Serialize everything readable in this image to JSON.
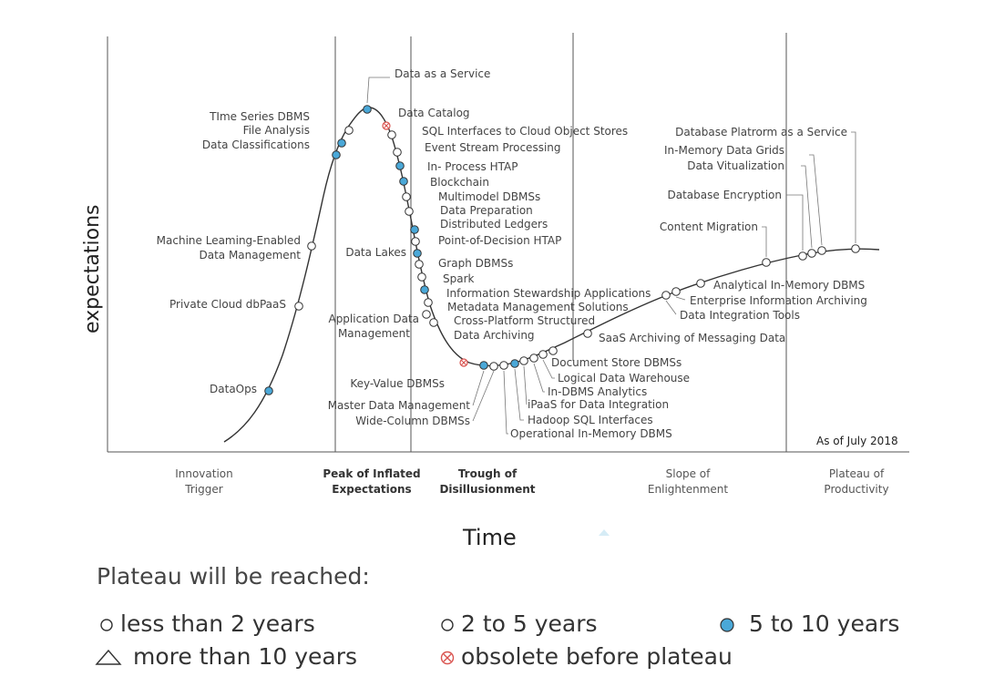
{
  "axes": {
    "ylabel": "expectations",
    "xlabel": "Time",
    "as_of": "As of July 2018"
  },
  "phases": [
    {
      "line1": "Innovation",
      "line2": "Trigger",
      "bold": false
    },
    {
      "line1": "Peak of Inflated",
      "line2": "Expectations",
      "bold": true
    },
    {
      "line1": "Trough of",
      "line2": "Disillusionment",
      "bold": true
    },
    {
      "line1": "Slope of",
      "line2": "Enlightenment",
      "bold": false
    },
    {
      "line1": "Plateau of",
      "line2": "Productivity",
      "bold": false
    }
  ],
  "technologies": [
    {
      "name": "DataOps",
      "type": "5-10"
    },
    {
      "name": "Private Cloud dbPaaS",
      "type": "2-5"
    },
    {
      "name": "Machine Leaming-Enabled",
      "name2": "Data Management",
      "type": "2-5"
    },
    {
      "name": "Data Classifications",
      "type": "5-10"
    },
    {
      "name": "File Analysis",
      "type": "5-10"
    },
    {
      "name": "TIme Series DBMS",
      "type": "2-5"
    },
    {
      "name": "Data as a Service",
      "type": "5-10"
    },
    {
      "name": "Data Catalog",
      "type": "obsolete"
    },
    {
      "name": "SQL Interfaces to Cloud Object Stores",
      "type": "2-5"
    },
    {
      "name": "Event Stream Processing",
      "type": "2-5"
    },
    {
      "name": "In- Process HTAP",
      "type": "5-10"
    },
    {
      "name": "Blockchain",
      "type": "5-10"
    },
    {
      "name": "Multimodel DBMSs",
      "type": "2-5"
    },
    {
      "name": "Data Preparation",
      "type": "2-5"
    },
    {
      "name": "Distributed Ledgers",
      "type": "5-10"
    },
    {
      "name": "Point-of-Decision HTAP",
      "type": "2-5"
    },
    {
      "name": "Data Lakes",
      "type": "5-10"
    },
    {
      "name": "Graph DBMSs",
      "type": "2-5"
    },
    {
      "name": "Spark",
      "type": "2-5"
    },
    {
      "name": "Information Stewardship Applications",
      "type": "5-10"
    },
    {
      "name": "Metadata Management Solutions",
      "type": "2-5"
    },
    {
      "name": "Application Data",
      "name2": "Management",
      "type": "2-5"
    },
    {
      "name": "Cross-Platform Structured",
      "name2": "Data Archiving",
      "type": "2-5"
    },
    {
      "name": "Key-Value DBMSs",
      "type": "obsolete"
    },
    {
      "name": "Master Data Management",
      "type": "5-10"
    },
    {
      "name": "Wide-Column DBMSs",
      "type": "2-5"
    },
    {
      "name": "Operational In-Memory DBMS",
      "type": "2-5"
    },
    {
      "name": "Hadoop SQL Interfaces",
      "type": "5-10"
    },
    {
      "name": "iPaaS for Data Integration",
      "type": "2-5"
    },
    {
      "name": "In-DBMS Analytics",
      "type": "2-5"
    },
    {
      "name": "Logical Data Warehouse",
      "type": "2-5"
    },
    {
      "name": "Document Store DBMSs",
      "type": "2-5"
    },
    {
      "name": "SaaS Archiving of Messaging Data",
      "type": "2-5"
    },
    {
      "name": "Data Integration Tools",
      "type": "2-5"
    },
    {
      "name": "Enterprise Information Archiving",
      "type": "2-5"
    },
    {
      "name": "Analytical In-Memory DBMS",
      "type": "2-5"
    },
    {
      "name": "Content Migration",
      "type": "2-5"
    },
    {
      "name": "Database Encryption",
      "type": "2-5"
    },
    {
      "name": "Data Vitualization",
      "type": "2-5"
    },
    {
      "name": "In-Memory Data Grids",
      "type": "2-5"
    },
    {
      "name": "Database Platrorm as a Service",
      "type": "2-5"
    }
  ],
  "legend": {
    "title": "Plateau will be reached:",
    "items": [
      {
        "symbol": "circle-small",
        "label": "less than 2 years"
      },
      {
        "symbol": "circle-open",
        "label": "2 to 5 years"
      },
      {
        "symbol": "circle-filled",
        "label": "5 to 10 years"
      },
      {
        "symbol": "triangle",
        "label": "more than 10 years"
      },
      {
        "symbol": "obsolete",
        "label": "obsolete before plateau"
      }
    ]
  },
  "colors": {
    "five_to_ten": "#4aa8d8",
    "obsolete": "#d9534f",
    "curve": "#333333",
    "grid": "#555555"
  }
}
